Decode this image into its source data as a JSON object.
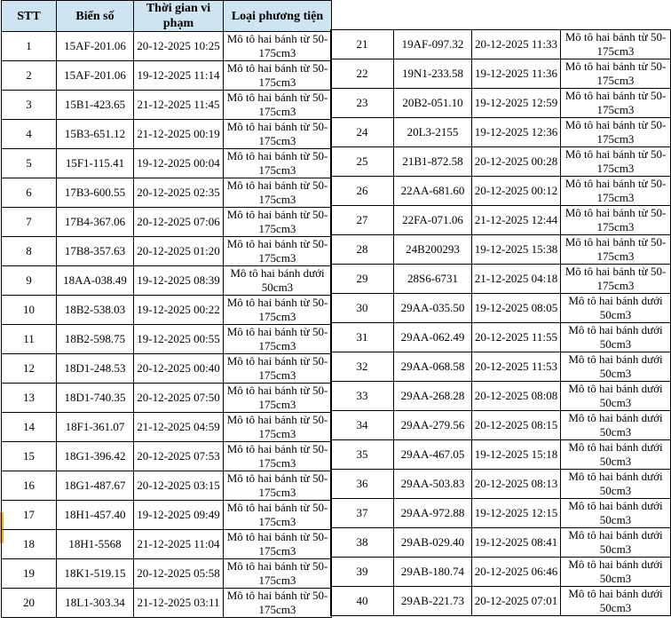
{
  "colors": {
    "header_bg": "#cfe4f1",
    "border": "#000000",
    "row_marker": "#efaf30",
    "text": "#000000"
  },
  "table": {
    "headers": [
      "STT",
      "Biển số",
      "Thời gian vi phạm",
      "Loại phương tiện"
    ],
    "marker_row_stt": "17",
    "vehicle_types": [
      "Mô tô hai bánh từ 50-175cm3",
      "Mô tô hai bánh dưới 50cm3"
    ],
    "left_rows": [
      {
        "stt": "1",
        "plate": "15AF-201.06",
        "time": "20-12-2025 10:25",
        "vehicle": "Mô tô hai bánh từ 50-175cm3"
      },
      {
        "stt": "2",
        "plate": "15AF-201.06",
        "time": "19-12-2025 11:14",
        "vehicle": "Mô tô hai bánh từ 50-175cm3"
      },
      {
        "stt": "3",
        "plate": "15B1-423.65",
        "time": "21-12-2025 11:45",
        "vehicle": "Mô tô hai bánh từ 50-175cm3"
      },
      {
        "stt": "4",
        "plate": "15B3-651.12",
        "time": "21-12-2025 00:19",
        "vehicle": "Mô tô hai bánh từ 50-175cm3"
      },
      {
        "stt": "5",
        "plate": "15F1-115.41",
        "time": "19-12-2025 00:04",
        "vehicle": "Mô tô hai bánh từ 50-175cm3"
      },
      {
        "stt": "6",
        "plate": "17B3-600.55",
        "time": "20-12-2025 02:35",
        "vehicle": "Mô tô hai bánh từ 50-175cm3"
      },
      {
        "stt": "7",
        "plate": "17B4-367.06",
        "time": "20-12-2025 07:06",
        "vehicle": "Mô tô hai bánh từ 50-175cm3"
      },
      {
        "stt": "8",
        "plate": "17B8-357.63",
        "time": "20-12-2025 01:20",
        "vehicle": "Mô tô hai bánh từ 50-175cm3"
      },
      {
        "stt": "9",
        "plate": "18AA-038.49",
        "time": "19-12-2025 08:39",
        "vehicle": "Mô tô hai bánh dưới 50cm3"
      },
      {
        "stt": "10",
        "plate": "18B2-538.03",
        "time": "19-12-2025 00:22",
        "vehicle": "Mô tô hai bánh từ 50-175cm3"
      },
      {
        "stt": "11",
        "plate": "18B2-598.75",
        "time": "19-12-2025 00:55",
        "vehicle": "Mô tô hai bánh từ 50-175cm3"
      },
      {
        "stt": "12",
        "plate": "18D1-248.53",
        "time": "20-12-2025 00:40",
        "vehicle": "Mô tô hai bánh từ 50-175cm3"
      },
      {
        "stt": "13",
        "plate": "18D1-740.35",
        "time": "20-12-2025 07:50",
        "vehicle": "Mô tô hai bánh từ 50-175cm3"
      },
      {
        "stt": "14",
        "plate": "18F1-361.07",
        "time": "21-12-2025 04:59",
        "vehicle": "Mô tô hai bánh từ 50-175cm3"
      },
      {
        "stt": "15",
        "plate": "18G1-396.42",
        "time": "20-12-2025 07:53",
        "vehicle": "Mô tô hai bánh từ 50-175cm3"
      },
      {
        "stt": "16",
        "plate": "18G1-487.67",
        "time": "20-12-2025 03:15",
        "vehicle": "Mô tô hai bánh từ 50-175cm3"
      },
      {
        "stt": "17",
        "plate": "18H1-457.40",
        "time": "19-12-2025 09:49",
        "vehicle": "Mô tô hai bánh từ 50-175cm3"
      },
      {
        "stt": "18",
        "plate": "18H1-5568",
        "time": "21-12-2025 11:04",
        "vehicle": "Mô tô hai bánh từ 50-175cm3"
      },
      {
        "stt": "19",
        "plate": "18K1-519.15",
        "time": "20-12-2025 05:58",
        "vehicle": "Mô tô hai bánh từ 50-175cm3"
      },
      {
        "stt": "20",
        "plate": "18L1-303.34",
        "time": "21-12-2025 03:11",
        "vehicle": "Mô tô hai bánh từ 50-175cm3"
      }
    ],
    "right_rows": [
      {
        "stt": "21",
        "plate": "19AF-097.32",
        "time": "20-12-2025 11:33",
        "vehicle": "Mô tô hai bánh từ 50-175cm3"
      },
      {
        "stt": "22",
        "plate": "19N1-233.58",
        "time": "19-12-2025 11:36",
        "vehicle": "Mô tô hai bánh từ 50-175cm3"
      },
      {
        "stt": "23",
        "plate": "20B2-051.10",
        "time": "19-12-2025 12:59",
        "vehicle": "Mô tô hai bánh từ 50-175cm3"
      },
      {
        "stt": "24",
        "plate": "20L3-2155",
        "time": "19-12-2025 12:36",
        "vehicle": "Mô tô hai bánh từ 50-175cm3"
      },
      {
        "stt": "25",
        "plate": "21B1-872.58",
        "time": "20-12-2025 00:28",
        "vehicle": "Mô tô hai bánh từ 50-175cm3"
      },
      {
        "stt": "26",
        "plate": "22AA-681.60",
        "time": "20-12-2025 00:12",
        "vehicle": "Mô tô hai bánh từ 50-175cm3"
      },
      {
        "stt": "27",
        "plate": "22FA-071.06",
        "time": "21-12-2025 12:44",
        "vehicle": "Mô tô hai bánh từ 50-175cm3"
      },
      {
        "stt": "28",
        "plate": "24B200293",
        "time": "19-12-2025 15:38",
        "vehicle": "Mô tô hai bánh từ 50-175cm3"
      },
      {
        "stt": "29",
        "plate": "28S6-6731",
        "time": "21-12-2025 04:18",
        "vehicle": "Mô tô hai bánh từ 50-175cm3"
      },
      {
        "stt": "30",
        "plate": "29AA-035.50",
        "time": "19-12-2025 08:05",
        "vehicle": "Mô tô hai bánh dưới 50cm3"
      },
      {
        "stt": "31",
        "plate": "29AA-062.49",
        "time": "20-12-2025 11:55",
        "vehicle": "Mô tô hai bánh dưới 50cm3"
      },
      {
        "stt": "32",
        "plate": "29AA-068.58",
        "time": "20-12-2025 11:53",
        "vehicle": "Mô tô hai bánh dưới 50cm3"
      },
      {
        "stt": "33",
        "plate": "29AA-268.28",
        "time": "20-12-2025 08:08",
        "vehicle": "Mô tô hai bánh dưới 50cm3"
      },
      {
        "stt": "34",
        "plate": "29AA-279.56",
        "time": "20-12-2025 08:15",
        "vehicle": "Mô tô hai bánh dưới 50cm3"
      },
      {
        "stt": "35",
        "plate": "29AA-467.05",
        "time": "19-12-2025 15:18",
        "vehicle": "Mô tô hai bánh dưới 50cm3"
      },
      {
        "stt": "36",
        "plate": "29AA-503.83",
        "time": "20-12-2025 08:13",
        "vehicle": "Mô tô hai bánh dưới 50cm3"
      },
      {
        "stt": "37",
        "plate": "29AA-972.88",
        "time": "19-12-2025 12:15",
        "vehicle": "Mô tô hai bánh dưới 50cm3"
      },
      {
        "stt": "38",
        "plate": "29AB-029.40",
        "time": "19-12-2025 08:41",
        "vehicle": "Mô tô hai bánh dưới 50cm3"
      },
      {
        "stt": "39",
        "plate": "29AB-180.74",
        "time": "20-12-2025 06:46",
        "vehicle": "Mô tô hai bánh dưới 50cm3"
      },
      {
        "stt": "40",
        "plate": "29AB-221.73",
        "time": "20-12-2025 07:01",
        "vehicle": "Mô tô hai bánh dưới 50cm3"
      }
    ]
  }
}
